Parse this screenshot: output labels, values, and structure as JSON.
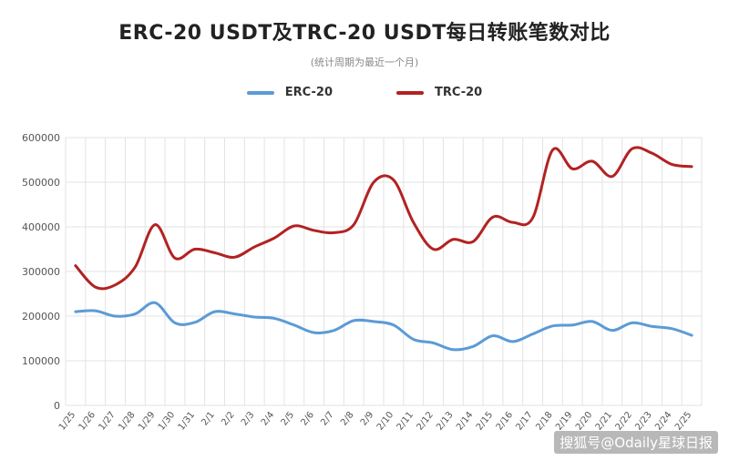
{
  "title": "ERC-20 USDT及TRC-20 USDT每日转账笔数对比",
  "subtitle": "(统计周期为最近一个月)",
  "watermark": "搜狐号@Odaily星球日报",
  "chart_data": {
    "type": "line",
    "x": [
      "1/25",
      "1/26",
      "1/27",
      "1/28",
      "1/29",
      "1/30",
      "1/31",
      "2/1",
      "2/2",
      "2/3",
      "2/4",
      "2/5",
      "2/6",
      "2/7",
      "2/8",
      "2/9",
      "2/10",
      "2/11",
      "2/12",
      "2/13",
      "2/14",
      "2/15",
      "2/16",
      "2/17",
      "2/18",
      "2/19",
      "2/20",
      "2/21",
      "2/22",
      "2/23",
      "2/24",
      "2/25"
    ],
    "series": [
      {
        "name": "ERC-20",
        "color": "#5b9bd5",
        "values": [
          210000,
          212000,
          200000,
          205000,
          230000,
          185000,
          186000,
          210000,
          205000,
          198000,
          195000,
          180000,
          163000,
          168000,
          190000,
          188000,
          180000,
          148000,
          140000,
          125000,
          132000,
          156000,
          143000,
          160000,
          178000,
          180000,
          188000,
          168000,
          185000,
          177000,
          172000,
          157000
        ]
      },
      {
        "name": "TRC-20",
        "color": "#b22222",
        "values": [
          313000,
          265000,
          270000,
          310000,
          405000,
          330000,
          350000,
          342000,
          332000,
          355000,
          375000,
          402000,
          392000,
          387000,
          405000,
          500000,
          505000,
          410000,
          350000,
          372000,
          367000,
          422000,
          410000,
          420000,
          572000,
          530000,
          547000,
          513000,
          575000,
          565000,
          540000,
          535000
        ]
      }
    ],
    "ylim": [
      0,
      600000
    ],
    "yticks": [
      0,
      100000,
      200000,
      300000,
      400000,
      500000,
      600000
    ],
    "grid": true,
    "legend_position": "top-center"
  }
}
